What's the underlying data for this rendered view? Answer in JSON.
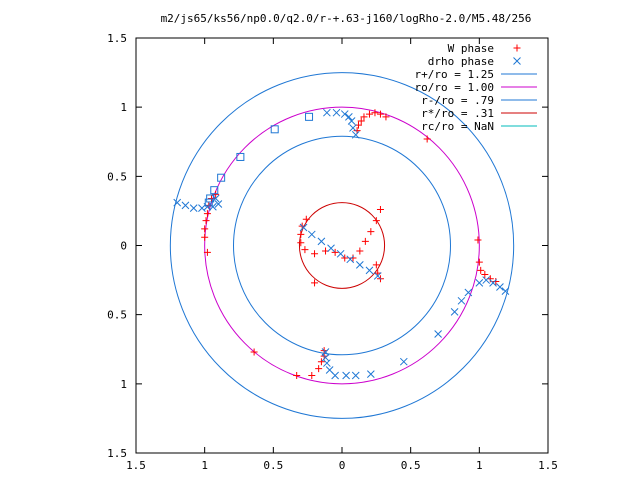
{
  "chart_data": {
    "type": "scatter",
    "title": "m2/js65/ks56/np0.0/q2.0/r-+.63-j160/logRho-2.0/M5.48/256",
    "xlim": [
      -1.5,
      1.5
    ],
    "ylim": [
      -1.5,
      1.5
    ],
    "x_ticks": [
      {
        "v": -1.5,
        "label": "1.5"
      },
      {
        "v": -1,
        "label": "1"
      },
      {
        "v": -0.5,
        "label": "0.5"
      },
      {
        "v": 0,
        "label": "0"
      },
      {
        "v": 0.5,
        "label": "0.5"
      },
      {
        "v": 1,
        "label": "1"
      },
      {
        "v": 1.5,
        "label": "1.5"
      }
    ],
    "y_ticks": [
      {
        "v": -1.5,
        "label": "1.5"
      },
      {
        "v": -1,
        "label": "1"
      },
      {
        "v": -0.5,
        "label": "0.5"
      },
      {
        "v": 0,
        "label": "0"
      },
      {
        "v": 0.5,
        "label": "0.5"
      },
      {
        "v": 1,
        "label": "1"
      },
      {
        "v": 1.5,
        "label": "1.5"
      }
    ],
    "grid": false,
    "legend_position": "top-right",
    "series": [
      {
        "name": "W phase",
        "kind": "points",
        "marker": "plus",
        "color": "#ff0000",
        "points": [
          [
            0.16,
            0.93
          ],
          [
            0.2,
            0.95
          ],
          [
            0.24,
            0.96
          ],
          [
            0.28,
            0.95
          ],
          [
            0.32,
            0.93
          ],
          [
            0.14,
            0.9
          ],
          [
            0.12,
            0.87
          ],
          [
            0.11,
            0.83
          ],
          [
            0.62,
            0.77
          ],
          [
            0.28,
            0.26
          ],
          [
            0.25,
            0.18
          ],
          [
            0.21,
            0.1
          ],
          [
            0.17,
            0.03
          ],
          [
            0.13,
            -0.04
          ],
          [
            0.08,
            -0.09
          ],
          [
            0.02,
            -0.09
          ],
          [
            -0.05,
            -0.05
          ],
          [
            -0.12,
            -0.04
          ],
          [
            -0.2,
            -0.06
          ],
          [
            -0.27,
            -0.03
          ],
          [
            -0.3,
            0.02
          ],
          [
            -0.3,
            0.08
          ],
          [
            -0.29,
            0.14
          ],
          [
            -0.26,
            0.19
          ],
          [
            0.25,
            -0.14
          ],
          [
            0.26,
            -0.2
          ],
          [
            0.28,
            -0.24
          ],
          [
            -0.2,
            -0.27
          ],
          [
            -0.98,
            -0.05
          ],
          [
            -1.0,
            0.06
          ],
          [
            -1.0,
            0.12
          ],
          [
            -0.99,
            0.18
          ],
          [
            -0.98,
            0.23
          ],
          [
            -0.97,
            0.29
          ],
          [
            -0.95,
            0.34
          ],
          [
            -0.92,
            0.37
          ],
          [
            0.99,
            0.04
          ],
          [
            1.0,
            -0.12
          ],
          [
            1.01,
            -0.18
          ],
          [
            1.04,
            -0.21
          ],
          [
            1.08,
            -0.24
          ],
          [
            1.12,
            -0.26
          ],
          [
            -0.64,
            -0.77
          ],
          [
            -0.33,
            -0.94
          ],
          [
            -0.22,
            -0.94
          ],
          [
            -0.17,
            -0.89
          ],
          [
            -0.15,
            -0.84
          ],
          [
            -0.13,
            -0.8
          ],
          [
            -0.13,
            -0.76
          ]
        ]
      },
      {
        "name": "drho phase",
        "kind": "points",
        "marker": "cross",
        "color": "#1f77d4",
        "points": [
          [
            -0.11,
            0.96
          ],
          [
            -0.04,
            0.96
          ],
          [
            0.02,
            0.95
          ],
          [
            0.05,
            0.93
          ],
          [
            0.07,
            0.9
          ],
          [
            0.08,
            0.85
          ],
          [
            0.1,
            0.8
          ],
          [
            -0.28,
            0.13
          ],
          [
            -0.22,
            0.08
          ],
          [
            -0.15,
            0.03
          ],
          [
            -0.08,
            -0.02
          ],
          [
            -0.01,
            -0.06
          ],
          [
            0.06,
            -0.1
          ],
          [
            0.13,
            -0.14
          ],
          [
            0.2,
            -0.18
          ],
          [
            0.26,
            -0.22
          ],
          [
            -1.2,
            0.31
          ],
          [
            -1.14,
            0.29
          ],
          [
            -1.08,
            0.27
          ],
          [
            -1.02,
            0.27
          ],
          [
            -0.98,
            0.28
          ],
          [
            -0.94,
            0.28
          ],
          [
            -0.92,
            0.34
          ],
          [
            -0.9,
            0.3
          ],
          [
            1.0,
            -0.27
          ],
          [
            1.05,
            -0.25
          ],
          [
            1.1,
            -0.27
          ],
          [
            1.15,
            -0.3
          ],
          [
            1.19,
            -0.33
          ],
          [
            0.92,
            -0.34
          ],
          [
            0.87,
            -0.4
          ],
          [
            0.82,
            -0.48
          ],
          [
            0.7,
            -0.64
          ],
          [
            0.45,
            -0.84
          ],
          [
            0.21,
            -0.93
          ],
          [
            0.1,
            -0.94
          ],
          [
            0.03,
            -0.94
          ],
          [
            -0.05,
            -0.94
          ],
          [
            -0.09,
            -0.9
          ],
          [
            -0.11,
            -0.85
          ],
          [
            -0.12,
            -0.81
          ],
          [
            -0.12,
            -0.77
          ]
        ]
      },
      {
        "name": "",
        "kind": "points",
        "marker": "square",
        "color": "#1f77d4",
        "points": [
          [
            -0.97,
            0.31
          ],
          [
            -0.96,
            0.34
          ],
          [
            -0.93,
            0.4
          ],
          [
            -0.88,
            0.49
          ],
          [
            -0.74,
            0.64
          ],
          [
            -0.49,
            0.84
          ],
          [
            -0.24,
            0.93
          ]
        ]
      },
      {
        "name": "r+/ro = 1.25",
        "kind": "circle",
        "r": 1.25,
        "color": "#1f77d4"
      },
      {
        "name": "ro/ro = 1.00",
        "kind": "circle",
        "r": 1.0,
        "color": "#cc00cc"
      },
      {
        "name": "r-/ro = .79",
        "kind": "circle",
        "r": 0.79,
        "color": "#1f77d4"
      },
      {
        "name": "r*/ro = .31",
        "kind": "circle",
        "r": 0.31,
        "color": "#cc0000"
      },
      {
        "name": "rc/ro = NaN",
        "kind": "circle",
        "r": null,
        "color": "#00bbbb"
      }
    ]
  }
}
